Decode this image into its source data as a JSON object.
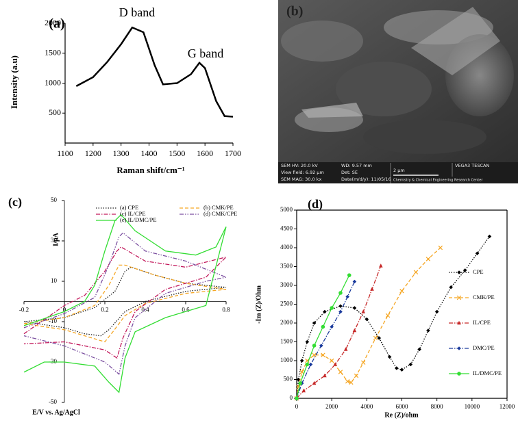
{
  "chart_data": [
    {
      "type": "line",
      "label": "(a)",
      "x_label": "Raman shift/cm⁻¹",
      "y_label": "Intensity (a.u)",
      "annotations": [
        "D band",
        "G band"
      ],
      "x": [
        1140,
        1200,
        1250,
        1300,
        1340,
        1380,
        1420,
        1450,
        1500,
        1550,
        1580,
        1600,
        1640,
        1670,
        1700
      ],
      "values": [
        950,
        1100,
        1350,
        1650,
        1930,
        1850,
        1300,
        980,
        1000,
        1150,
        1340,
        1250,
        700,
        450,
        440
      ],
      "color": "#000000",
      "xlim": [
        1100,
        1700
      ],
      "xticks": [
        1100,
        1200,
        1300,
        1400,
        1500,
        1600,
        1700
      ],
      "ylim": [
        0,
        2000
      ],
      "yticks": [
        500,
        1000,
        1500,
        2000
      ],
      "grid": false
    },
    {
      "type": "line",
      "label": "(c)",
      "x_label": "E/V vs. Ag/AgCl",
      "y_label": "I/µA",
      "xlim": [
        -0.2,
        0.8
      ],
      "xticks": [
        -0.2,
        0,
        0.2,
        0.4,
        0.6,
        0.8
      ],
      "ylim": [
        -50,
        50
      ],
      "yticks": [
        50,
        30,
        10,
        -10,
        -30,
        -50
      ],
      "axes_at_zero": true,
      "grid": false,
      "legend": "upper center",
      "series": [
        {
          "name": "(a) CPE",
          "color": "#222222",
          "linestyle": "dotted",
          "x": [
            -0.2,
            0,
            0.15,
            0.25,
            0.3,
            0.33,
            0.45,
            0.6,
            0.8,
            0.6,
            0.4,
            0.3,
            0.22,
            0.18,
            0.1,
            0,
            -0.2
          ],
          "values": [
            -10,
            -8,
            -3,
            5,
            15,
            17,
            13,
            9,
            7,
            5,
            0,
            -5,
            -14,
            -17,
            -16,
            -13,
            -10
          ]
        },
        {
          "name": "(b) CMK/PE",
          "color": "#f5a623",
          "linestyle": "dashed",
          "x": [
            -0.2,
            0,
            0.15,
            0.22,
            0.27,
            0.3,
            0.45,
            0.6,
            0.8,
            0.6,
            0.4,
            0.3,
            0.24,
            0.2,
            0.1,
            0,
            -0.2
          ],
          "values": [
            -11,
            -8,
            -2,
            8,
            18,
            18,
            13,
            9,
            6,
            4,
            -1,
            -7,
            -15,
            -20,
            -17,
            -14,
            -11
          ]
        },
        {
          "name": "(c) IL/CPE",
          "color": "#c2185b",
          "linestyle": "dashdot",
          "x": [
            -0.2,
            0,
            0.1,
            0.2,
            0.26,
            0.28,
            0.4,
            0.6,
            0.8,
            0.7,
            0.5,
            0.35,
            0.29,
            0.26,
            0.2,
            0,
            -0.2
          ],
          "values": [
            -16,
            -2,
            3,
            15,
            25,
            27,
            20,
            17,
            22,
            12,
            6,
            -5,
            -18,
            -28,
            -24,
            -20,
            -21
          ]
        },
        {
          "name": "(d) CMK/CPE",
          "color": "#7b4fa0",
          "linestyle": "dashdotdot",
          "x": [
            -0.2,
            0,
            0.15,
            0.22,
            0.27,
            0.29,
            0.4,
            0.6,
            0.8,
            0.7,
            0.5,
            0.35,
            0.3,
            0.27,
            0.2,
            0,
            -0.2
          ],
          "values": [
            -13,
            -6,
            2,
            18,
            32,
            34,
            25,
            20,
            12,
            10,
            4,
            -8,
            -22,
            -36,
            -30,
            -22,
            -17
          ]
        },
        {
          "name": "(e) IL/DMC/PE",
          "color": "#33dd33",
          "linestyle": "solid",
          "x": [
            -0.2,
            0,
            0.1,
            0.15,
            0.2,
            0.25,
            0.28,
            0.35,
            0.5,
            0.65,
            0.75,
            0.8,
            0.7,
            0.5,
            0.35,
            0.3,
            0.27,
            0.22,
            0.15,
            0,
            -0.1,
            -0.2
          ],
          "values": [
            -12,
            -5,
            0,
            8,
            25,
            40,
            43,
            35,
            25,
            23,
            27,
            37,
            -2,
            -8,
            -15,
            -28,
            -45,
            -40,
            -32,
            -30,
            -30,
            -35
          ]
        }
      ]
    },
    {
      "type": "scatter",
      "label": "(d)",
      "x_label": "Re (Z)/ohm",
      "y_label": "-Im (Z)/Ohm",
      "xlim": [
        0,
        12000
      ],
      "xticks": [
        0,
        2000,
        4000,
        6000,
        8000,
        10000,
        12000
      ],
      "ylim": [
        0,
        5000
      ],
      "yticks": [
        0,
        500,
        1000,
        1500,
        2000,
        2500,
        3000,
        3500,
        4000,
        4500,
        5000
      ],
      "frame": true,
      "grid": false,
      "legend": "center right",
      "series": [
        {
          "name": "CPE",
          "color": "#000000",
          "linestyle": "dotted",
          "marker": "diamond",
          "x": [
            0,
            100,
            300,
            600,
            1000,
            1600,
            2500,
            3300,
            4000,
            4700,
            5300,
            5700,
            6000,
            6500,
            7000,
            7500,
            8000,
            8800,
            9600,
            10300,
            11000
          ],
          "values": [
            0,
            500,
            1000,
            1500,
            2000,
            2300,
            2450,
            2400,
            2100,
            1600,
            1100,
            800,
            760,
            900,
            1300,
            1800,
            2300,
            2950,
            3400,
            3850,
            4300
          ]
        },
        {
          "name": "CMK/PE",
          "color": "#f5a623",
          "linestyle": "dashed",
          "marker": "x",
          "x": [
            0,
            100,
            300,
            600,
            1000,
            1500,
            2000,
            2500,
            2900,
            3100,
            3400,
            3800,
            4500,
            5200,
            6000,
            6800,
            7500,
            8200
          ],
          "values": [
            0,
            300,
            700,
            1000,
            1150,
            1150,
            1000,
            700,
            450,
            420,
            600,
            950,
            1600,
            2200,
            2850,
            3350,
            3700,
            4000
          ]
        },
        {
          "name": "IL/CPE",
          "color": "#c62828",
          "linestyle": "dashdot",
          "marker": "triangle",
          "x": [
            0,
            400,
            1000,
            1600,
            2200,
            2800,
            3300,
            3800,
            4300,
            4800
          ],
          "values": [
            0,
            200,
            400,
            600,
            900,
            1300,
            1800,
            2300,
            2900,
            3520
          ]
        },
        {
          "name": "DMC/PE",
          "color": "#1a3a9c",
          "linestyle": "dashdot",
          "marker": "diamond",
          "x": [
            0,
            300,
            800,
            1400,
            2000,
            2500,
            2900,
            3300
          ],
          "values": [
            0,
            400,
            900,
            1400,
            1900,
            2300,
            2700,
            3100
          ]
        },
        {
          "name": "IL/DMC/PE",
          "color": "#33dd33",
          "linestyle": "solid",
          "marker": "circle",
          "x": [
            0,
            200,
            600,
            1000,
            1500,
            2000,
            2500,
            3000
          ],
          "values": [
            0,
            400,
            900,
            1400,
            1900,
            2400,
            2800,
            3270
          ]
        }
      ]
    }
  ],
  "sem_image": {
    "label": "(b)",
    "info": [
      "SEM HV: 20.0 kV",
      "WD: 9.57 mm",
      "VEGA3 TESCAN",
      "View field: 6.92 µm",
      "Det: SE",
      "2 µm",
      "SEM MAG: 30.0 kx",
      "Date(m/d/y): 11/05/16",
      "Chemistry & Chemical Engineering Research Center"
    ]
  }
}
